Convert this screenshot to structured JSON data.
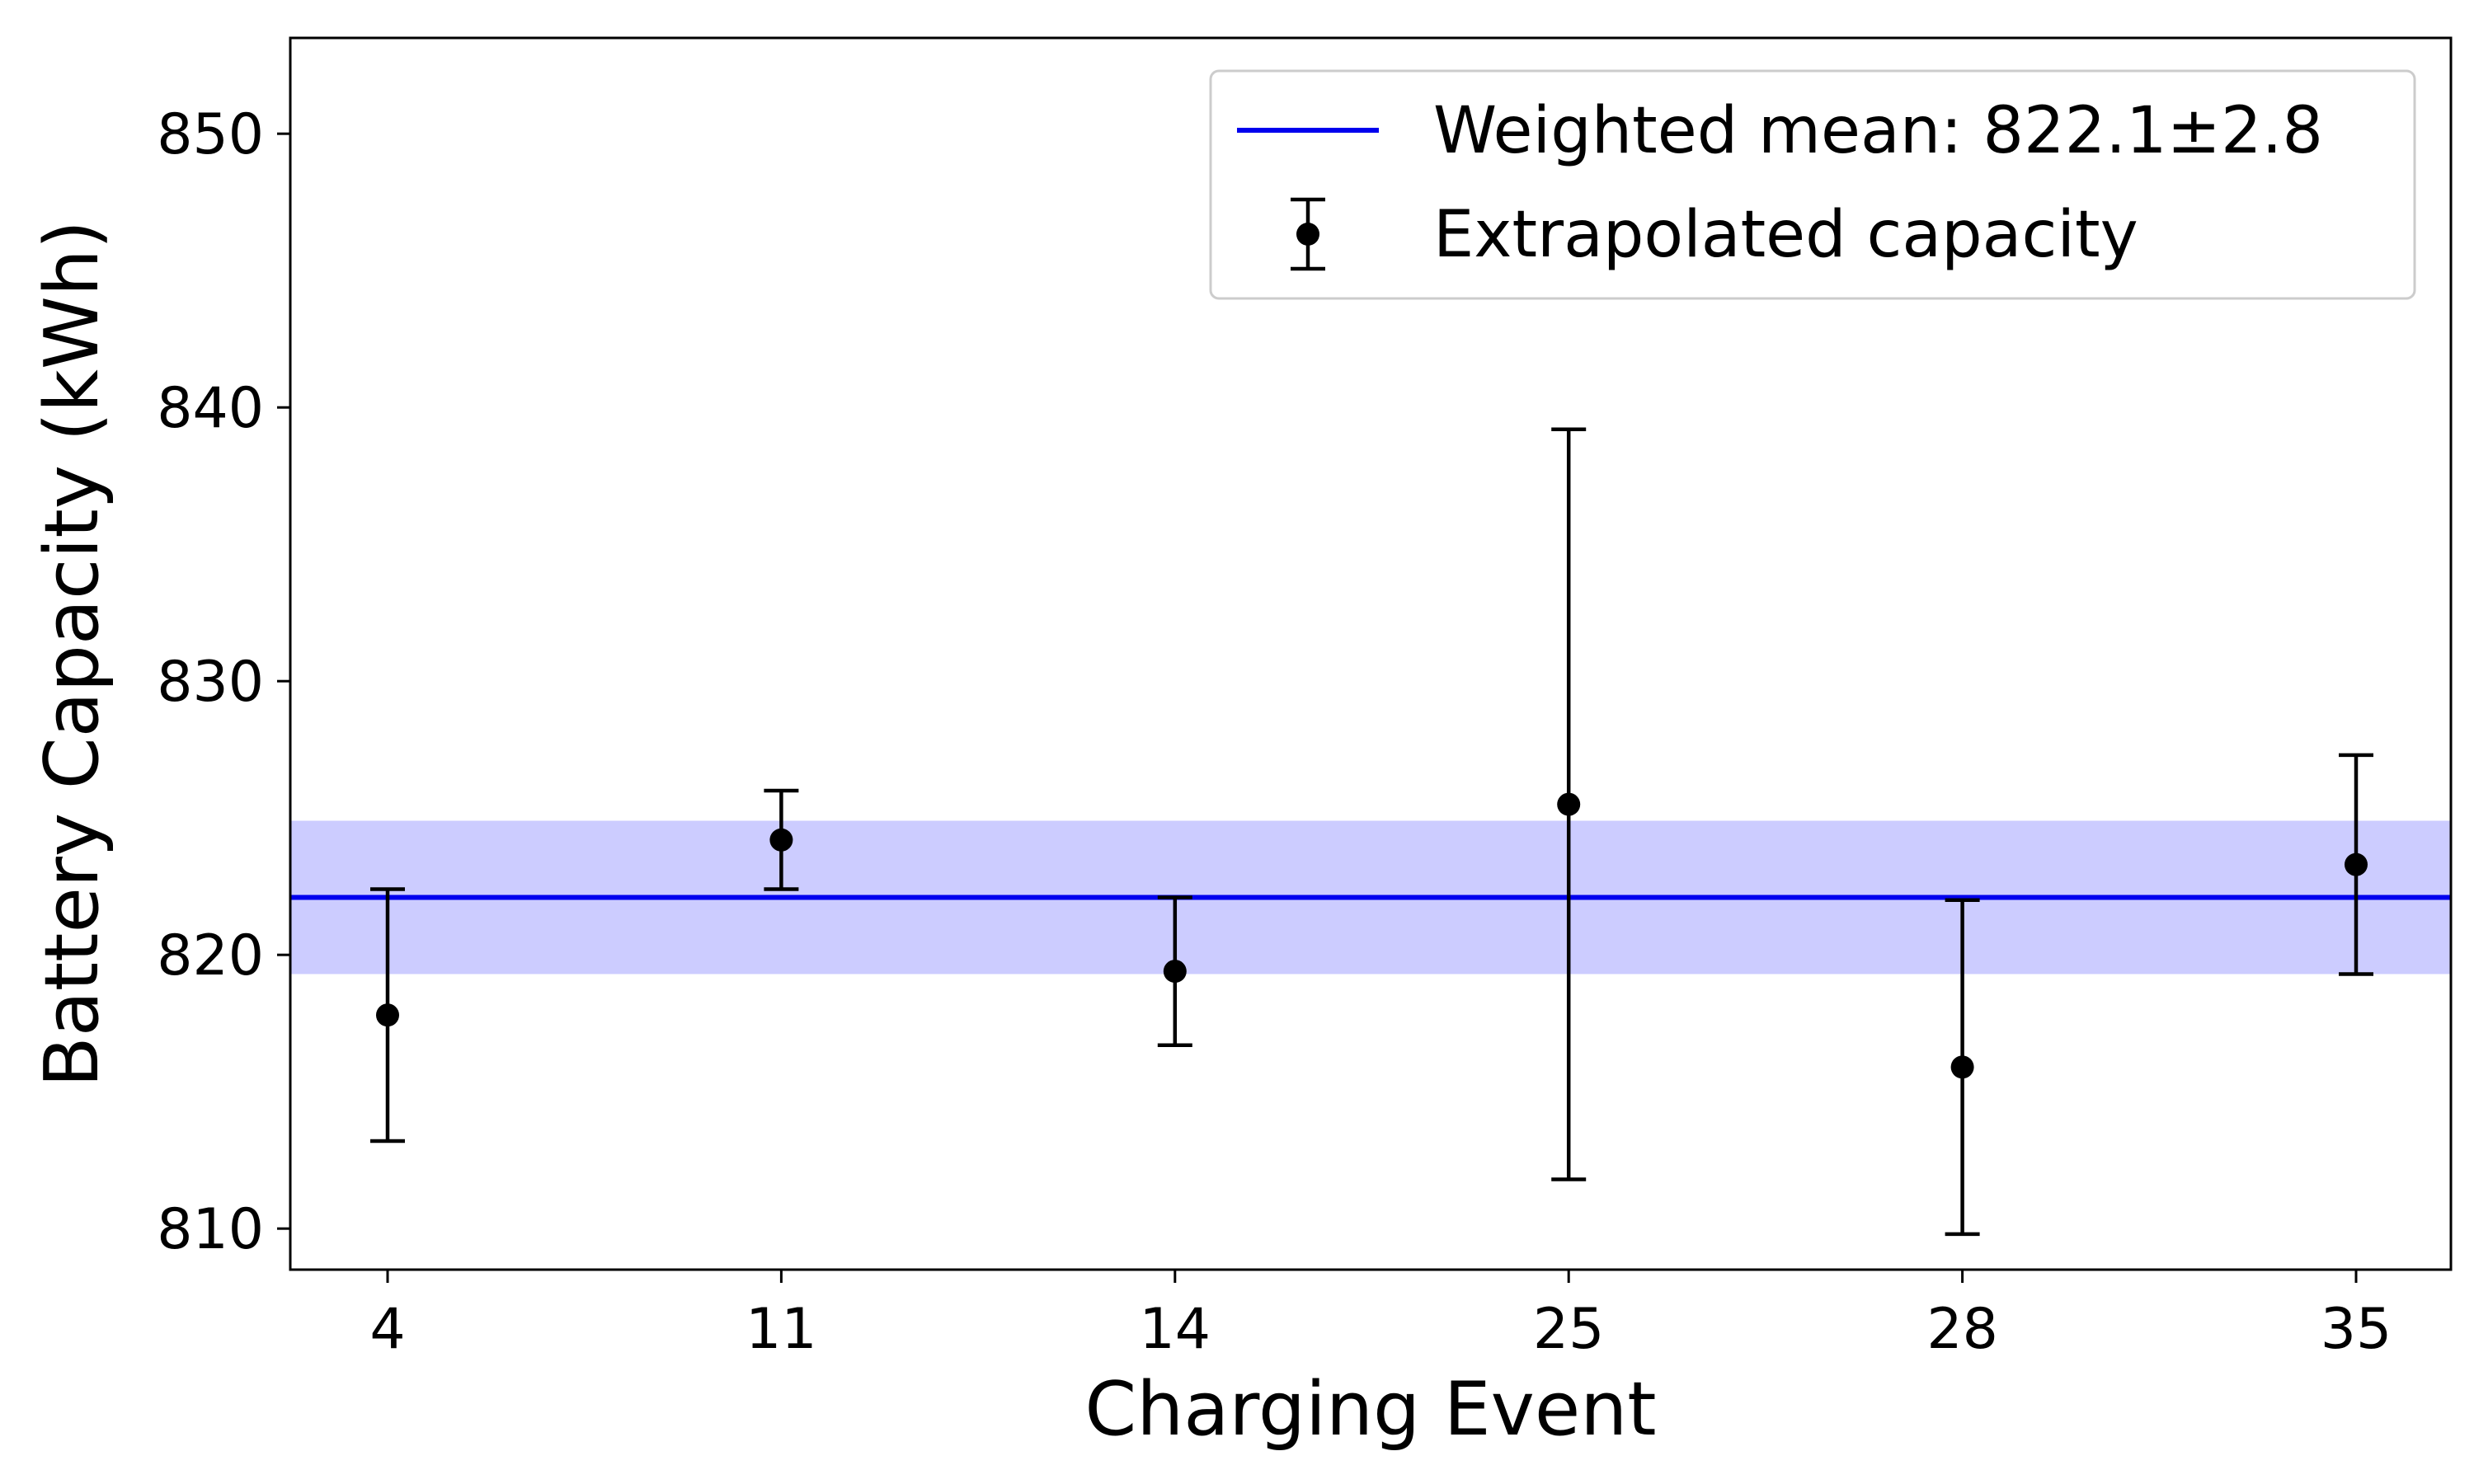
{
  "chart_data": {
    "type": "scatter",
    "xlabel": "Charging Event",
    "ylabel": "Battery Capacity (kWh)",
    "categories": [
      "4",
      "11",
      "14",
      "25",
      "28",
      "35"
    ],
    "ylim": [
      808.5,
      853.5
    ],
    "yticks": [
      810,
      820,
      830,
      840,
      850
    ],
    "grid": false,
    "legend_position": "top-right",
    "mean": {
      "label": "Weighted mean: 822.1±2.8",
      "value": 822.1,
      "uncertainty": 2.8,
      "line_color": "#0000ee",
      "band_color": "#ccccff"
    },
    "series": [
      {
        "name": "Extrapolated capacity",
        "color": "#000000",
        "points": [
          {
            "x": "4",
            "y": 817.8,
            "low": 813.2,
            "high": 822.4
          },
          {
            "x": "11",
            "y": 824.2,
            "low": 822.4,
            "high": 826.0
          },
          {
            "x": "14",
            "y": 819.4,
            "low": 816.7,
            "high": 822.1
          },
          {
            "x": "25",
            "y": 825.5,
            "low": 811.8,
            "high": 839.2
          },
          {
            "x": "28",
            "y": 815.9,
            "low": 809.8,
            "high": 822.0
          },
          {
            "x": "35",
            "y": 823.3,
            "low": 819.3,
            "high": 827.3
          }
        ]
      }
    ]
  }
}
